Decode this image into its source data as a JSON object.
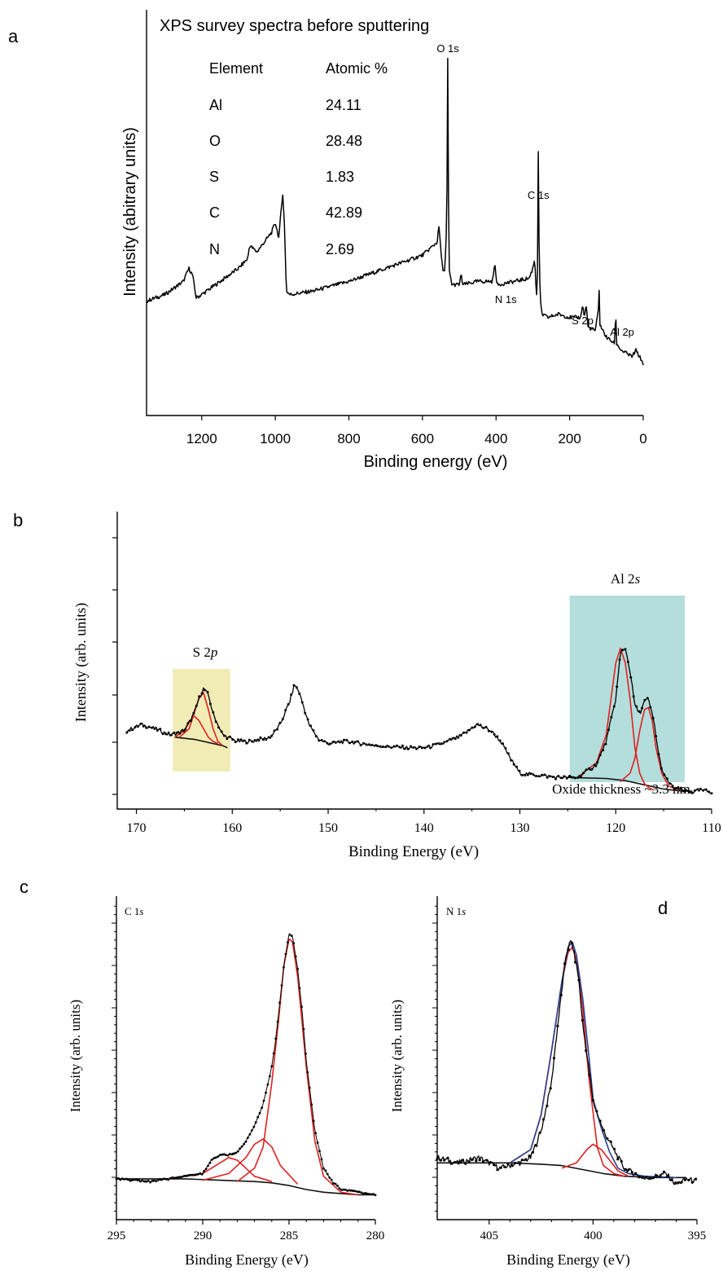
{
  "panel_letters": {
    "a": "a",
    "b": "b",
    "c": "c",
    "d": "d"
  },
  "colors": {
    "data": "#000000",
    "fit_component": "#e02020",
    "envelope": "#2a3f8f",
    "background": "#111111",
    "s2p_box": "#f1ecb5",
    "al2s_box": "#b3dedb"
  },
  "chart_data": [
    {
      "panel": "a",
      "type": "line",
      "title": "XPS survey spectra before sputtering",
      "xlabel": "Binding energy (eV)",
      "ylabel": "Intensity (abitrary units)",
      "xlim": [
        1350,
        0
      ],
      "x_reversed": true,
      "x_ticks": [
        1200,
        1000,
        800,
        600,
        400,
        200,
        0
      ],
      "table": {
        "headers": [
          "Element",
          "Atomic %"
        ],
        "rows": [
          [
            "Al",
            "24.11"
          ],
          [
            "O",
            "28.48"
          ],
          [
            "S",
            "1.83"
          ],
          [
            "C",
            "42.89"
          ],
          [
            "N",
            "2.69"
          ]
        ]
      },
      "peak_labels": [
        {
          "text": "O 1s",
          "x": 531
        },
        {
          "text": "C 1s",
          "x": 285
        },
        {
          "text": "N 1s",
          "x": 400
        },
        {
          "text": "S 2p",
          "x": 165
        },
        {
          "text": "Al 2p",
          "x": 75
        }
      ],
      "series": [
        {
          "x": [
            1350,
            1300,
            1250,
            1235,
            1225,
            1215,
            1200,
            1150,
            1100,
            1075,
            1070,
            1050,
            1010,
            1000,
            990,
            985,
            980,
            975,
            970,
            960,
            900,
            800,
            700,
            600,
            570,
            560,
            555,
            550,
            545,
            540,
            536,
            533,
            531,
            529,
            527,
            525,
            520,
            500,
            495,
            490,
            450,
            410,
            402,
            400,
            398,
            395,
            350,
            310,
            300,
            295,
            290,
            287,
            285,
            283,
            280,
            275,
            260,
            230,
            200,
            170,
            165,
            160,
            155,
            150,
            130,
            122,
            120,
            118,
            110,
            100,
            78,
            75,
            72,
            60,
            30,
            20,
            0
          ],
          "y": [
            0.23,
            0.25,
            0.29,
            0.33,
            0.31,
            0.24,
            0.25,
            0.29,
            0.33,
            0.36,
            0.4,
            0.38,
            0.44,
            0.47,
            0.42,
            0.5,
            0.56,
            0.46,
            0.26,
            0.25,
            0.26,
            0.29,
            0.33,
            0.37,
            0.4,
            0.41,
            0.46,
            0.38,
            0.33,
            0.32,
            0.4,
            0.6,
            1.03,
            0.5,
            0.32,
            0.31,
            0.28,
            0.28,
            0.31,
            0.28,
            0.29,
            0.29,
            0.35,
            0.3,
            0.28,
            0.28,
            0.29,
            0.3,
            0.33,
            0.36,
            0.24,
            0.33,
            0.73,
            0.4,
            0.23,
            0.19,
            0.18,
            0.19,
            0.18,
            0.18,
            0.22,
            0.18,
            0.22,
            0.15,
            0.14,
            0.2,
            0.28,
            0.16,
            0.14,
            0.12,
            0.1,
            0.2,
            0.1,
            0.08,
            0.06,
            0.08,
            0.04
          ]
        }
      ]
    },
    {
      "panel": "b",
      "type": "line",
      "xlabel": "Binding Energy (eV)",
      "ylabel": "Intensity (arb. units)",
      "xlim": [
        172,
        110
      ],
      "x_reversed": true,
      "x_ticks": [
        170,
        160,
        150,
        140,
        130,
        120,
        110
      ],
      "annotations": {
        "s2p_label": "S 2",
        "s2p_italic": "p",
        "al2s_label": "Al 2",
        "al2s_italic": "s",
        "oxide": "Oxide thickness ~3.3 nm"
      },
      "highlight_ranges": [
        [
          166.2,
          160.2
        ],
        [
          124.8,
          112.8
        ]
      ],
      "series": [
        {
          "style": "data",
          "x": [
            171,
            169.5,
            168,
            166.5,
            165,
            164,
            163.5,
            163,
            162.5,
            162,
            161,
            159.5,
            158,
            156,
            155,
            154,
            153.5,
            153,
            152,
            151,
            150,
            148,
            145,
            142,
            140,
            138,
            136,
            134.5,
            134,
            133,
            132,
            131,
            130,
            128,
            126,
            124,
            122,
            121,
            120,
            119.5,
            119,
            118.5,
            118,
            117.5,
            117,
            116.6,
            116,
            115.5,
            115,
            114,
            113,
            112,
            111,
            110
          ],
          "y": [
            0.3,
            0.33,
            0.31,
            0.28,
            0.3,
            0.38,
            0.45,
            0.5,
            0.47,
            0.38,
            0.28,
            0.25,
            0.25,
            0.27,
            0.33,
            0.44,
            0.52,
            0.48,
            0.33,
            0.26,
            0.24,
            0.25,
            0.23,
            0.22,
            0.22,
            0.24,
            0.28,
            0.33,
            0.32,
            0.3,
            0.25,
            0.17,
            0.1,
            0.09,
            0.08,
            0.08,
            0.14,
            0.25,
            0.45,
            0.67,
            0.69,
            0.58,
            0.42,
            0.38,
            0.44,
            0.45,
            0.34,
            0.18,
            0.09,
            0.03,
            0.02,
            0.01,
            0.02,
            0.01
          ]
        },
        {
          "style": "background",
          "x": [
            166,
            164,
            162,
            161,
            160.5
          ],
          "y": [
            0.27,
            0.26,
            0.24,
            0.23,
            0.22
          ]
        },
        {
          "style": "component",
          "x": [
            166,
            165,
            164.5,
            164,
            163.5,
            163,
            162.5,
            162,
            161.5
          ],
          "y": [
            0.27,
            0.3,
            0.34,
            0.37,
            0.35,
            0.31,
            0.27,
            0.25,
            0.24
          ]
        },
        {
          "style": "component",
          "x": [
            165.5,
            164.5,
            164,
            163.5,
            163,
            162.5,
            162,
            161.5,
            161
          ],
          "y": [
            0.27,
            0.31,
            0.38,
            0.45,
            0.48,
            0.4,
            0.31,
            0.25,
            0.23
          ]
        },
        {
          "style": "background",
          "x": [
            125,
            121,
            119,
            117,
            115,
            113,
            112
          ],
          "y": [
            0.08,
            0.075,
            0.065,
            0.045,
            0.025,
            0.015,
            0.015
          ]
        },
        {
          "style": "component",
          "x": [
            124,
            122,
            121,
            120.5,
            120,
            119.5,
            119,
            118.5,
            118,
            117.5,
            117,
            116.5,
            116
          ],
          "y": [
            0.08,
            0.15,
            0.28,
            0.45,
            0.62,
            0.69,
            0.62,
            0.45,
            0.22,
            0.1,
            0.05,
            0.03,
            0.02
          ]
        },
        {
          "style": "component",
          "x": [
            119.5,
            118.5,
            118,
            117.5,
            117,
            116.6,
            116.2,
            115.8,
            115.2,
            114.5,
            113.5
          ],
          "y": [
            0.06,
            0.1,
            0.17,
            0.3,
            0.4,
            0.41,
            0.35,
            0.22,
            0.1,
            0.04,
            0.02
          ]
        }
      ]
    },
    {
      "panel": "c",
      "type": "line",
      "xlabel": "Binding Energy (eV)",
      "ylabel": "Intensity (arb. units)",
      "region_label": "C 1",
      "region_italic": "s",
      "xlim": [
        295,
        280
      ],
      "x_reversed": true,
      "x_ticks": [
        295,
        290,
        285,
        280
      ],
      "series": [
        {
          "style": "data",
          "x": [
            295,
            293,
            291,
            290,
            289.5,
            289,
            288.5,
            288,
            287.5,
            287,
            286.5,
            286,
            285.8,
            285.5,
            285.3,
            285.1,
            285,
            284.8,
            284.5,
            284.2,
            284,
            283.5,
            283,
            282.5,
            282,
            281,
            280
          ],
          "y": [
            0.04,
            0.03,
            0.05,
            0.06,
            0.11,
            0.13,
            0.13,
            0.14,
            0.18,
            0.24,
            0.32,
            0.46,
            0.55,
            0.72,
            0.84,
            0.92,
            0.96,
            0.95,
            0.83,
            0.64,
            0.48,
            0.22,
            0.08,
            0.03,
            0.0,
            -0.01,
            -0.02
          ]
        },
        {
          "style": "background",
          "x": [
            295,
            291,
            289,
            287,
            286,
            285,
            284,
            283,
            282,
            281,
            280
          ],
          "y": [
            0.04,
            0.04,
            0.035,
            0.03,
            0.025,
            0.015,
            0.0,
            -0.01,
            -0.015,
            -0.02,
            -0.02
          ]
        },
        {
          "style": "component",
          "x": [
            292,
            290,
            289,
            288.5,
            288,
            287.5,
            287,
            286
          ],
          "y": [
            0.04,
            0.06,
            0.1,
            0.12,
            0.11,
            0.08,
            0.05,
            0.03
          ]
        },
        {
          "style": "component",
          "x": [
            290,
            288.5,
            287.5,
            287,
            286.5,
            286,
            285.5,
            284.5
          ],
          "y": [
            0.035,
            0.06,
            0.12,
            0.17,
            0.19,
            0.16,
            0.09,
            0.02
          ]
        },
        {
          "style": "component",
          "x": [
            288,
            287,
            286.5,
            286,
            285.6,
            285.3,
            285,
            284.8,
            284.5,
            284,
            283.5,
            283,
            282,
            281
          ],
          "y": [
            0.03,
            0.08,
            0.16,
            0.4,
            0.64,
            0.84,
            0.94,
            0.93,
            0.8,
            0.46,
            0.18,
            0.05,
            -0.01,
            -0.02
          ]
        }
      ]
    },
    {
      "panel": "d",
      "type": "line",
      "xlabel": "Binding Energy (eV)",
      "ylabel": "Intensity (arb. units)",
      "region_label": "N 1",
      "region_italic": "s",
      "xlim": [
        407.5,
        395
      ],
      "x_reversed": true,
      "x_ticks": [
        405,
        400,
        395
      ],
      "series": [
        {
          "style": "data",
          "x": [
            407.5,
            406.5,
            405.5,
            404.5,
            403.5,
            403,
            402.5,
            402,
            401.8,
            401.5,
            401.3,
            401.1,
            401,
            400.7,
            400.5,
            400.2,
            400,
            399.5,
            399,
            398.5,
            398,
            397.5,
            397,
            396.5,
            396,
            395.5,
            395
          ],
          "y": [
            0.12,
            0.1,
            0.12,
            0.08,
            0.1,
            0.12,
            0.22,
            0.4,
            0.55,
            0.75,
            0.88,
            0.93,
            0.92,
            0.8,
            0.62,
            0.45,
            0.33,
            0.22,
            0.15,
            0.08,
            0.06,
            0.04,
            0.05,
            0.06,
            0.02,
            0.04,
            0.03
          ]
        },
        {
          "style": "background",
          "x": [
            407.5,
            404,
            402.5,
            401.5,
            400.5,
            399.5,
            398.5,
            397,
            395.5
          ],
          "y": [
            0.1,
            0.1,
            0.095,
            0.09,
            0.075,
            0.06,
            0.05,
            0.045,
            0.045
          ]
        },
        {
          "style": "component",
          "x": [
            404,
            403,
            402.5,
            402,
            401.5,
            401.2,
            401,
            400.8,
            400.5,
            400.2,
            399.8,
            399.5,
            399,
            398.5
          ],
          "y": [
            0.1,
            0.15,
            0.28,
            0.52,
            0.78,
            0.89,
            0.91,
            0.86,
            0.68,
            0.42,
            0.16,
            0.09,
            0.06,
            0.05
          ]
        },
        {
          "style": "component",
          "x": [
            401.5,
            400.8,
            400.3,
            400,
            399.6,
            399.2,
            398.8,
            398.3
          ],
          "y": [
            0.08,
            0.1,
            0.15,
            0.17,
            0.15,
            0.11,
            0.07,
            0.05
          ]
        },
        {
          "style": "envelope",
          "x": [
            404,
            403,
            402.5,
            402,
            401.5,
            401.2,
            401,
            400.8,
            400.5,
            400.2,
            400,
            399.6,
            399.2,
            398.8,
            398.3,
            397.5,
            396
          ],
          "y": [
            0.1,
            0.15,
            0.28,
            0.52,
            0.78,
            0.91,
            0.93,
            0.88,
            0.72,
            0.5,
            0.34,
            0.23,
            0.14,
            0.08,
            0.06,
            0.05,
            0.045
          ]
        }
      ]
    }
  ]
}
